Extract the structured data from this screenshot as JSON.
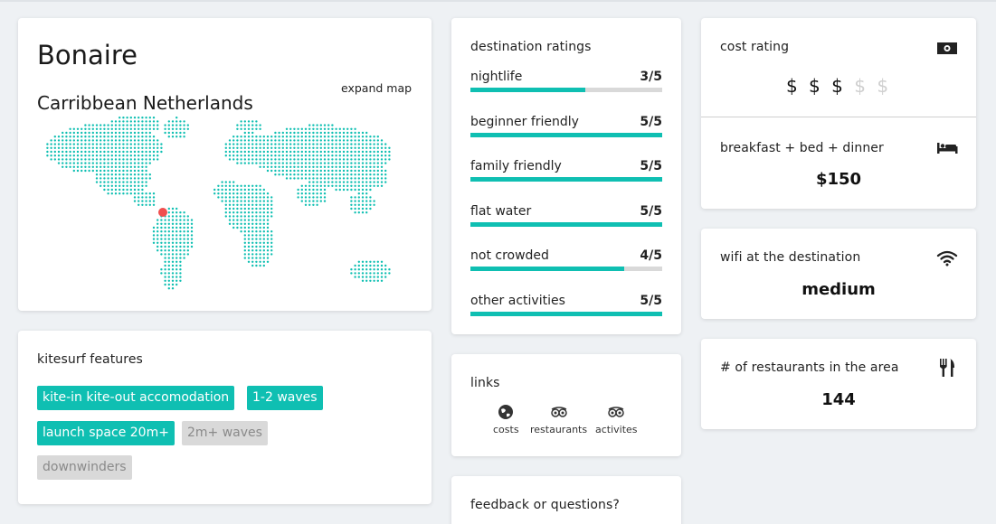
{
  "destination": {
    "name": "Bonaire",
    "region": "Carribbean Netherlands",
    "expand_map_label": "expand map",
    "accent_color": "#0fbfb2",
    "marker_color": "#f04e4e"
  },
  "features": {
    "title": "kitesurf features",
    "tags": [
      {
        "label": "kite-in kite-out accomodation",
        "active": true
      },
      {
        "label": "1-2 waves",
        "active": true
      },
      {
        "label": "launch space 20m+",
        "active": true
      },
      {
        "label": "2m+ waves",
        "active": false
      },
      {
        "label": "downwinders",
        "active": false
      }
    ]
  },
  "ratings": {
    "title": "destination ratings",
    "items": [
      {
        "label": "nightlife",
        "score": "3/5",
        "value": 3,
        "max": 5
      },
      {
        "label": "beginner friendly",
        "score": "5/5",
        "value": 5,
        "max": 5
      },
      {
        "label": "family friendly",
        "score": "5/5",
        "value": 5,
        "max": 5
      },
      {
        "label": "flat water",
        "score": "5/5",
        "value": 5,
        "max": 5
      },
      {
        "label": "not crowded",
        "score": "4/5",
        "value": 4,
        "max": 5
      },
      {
        "label": "other activities",
        "score": "5/5",
        "value": 5,
        "max": 5
      }
    ]
  },
  "links": {
    "title": "links",
    "items": [
      {
        "label": "costs",
        "icon": "globe-icon"
      },
      {
        "label": "restaurants",
        "icon": "tripadvisor-icon"
      },
      {
        "label": "activites",
        "icon": "tripadvisor-icon"
      }
    ]
  },
  "feedback": {
    "title": "feedback or questions?"
  },
  "cost": {
    "title": "cost rating",
    "icon": "money-icon",
    "dollars": [
      true,
      true,
      true,
      false,
      false
    ],
    "meal_title": "breakfast + bed + dinner",
    "meal_icon": "bed-icon",
    "meal_price": "$150"
  },
  "wifi": {
    "title": "wifi at the destination",
    "icon": "wifi-icon",
    "value": "medium"
  },
  "restaurants": {
    "title": "# of restaurants in the area",
    "icon": "fork-knife-icon",
    "value": "144"
  }
}
